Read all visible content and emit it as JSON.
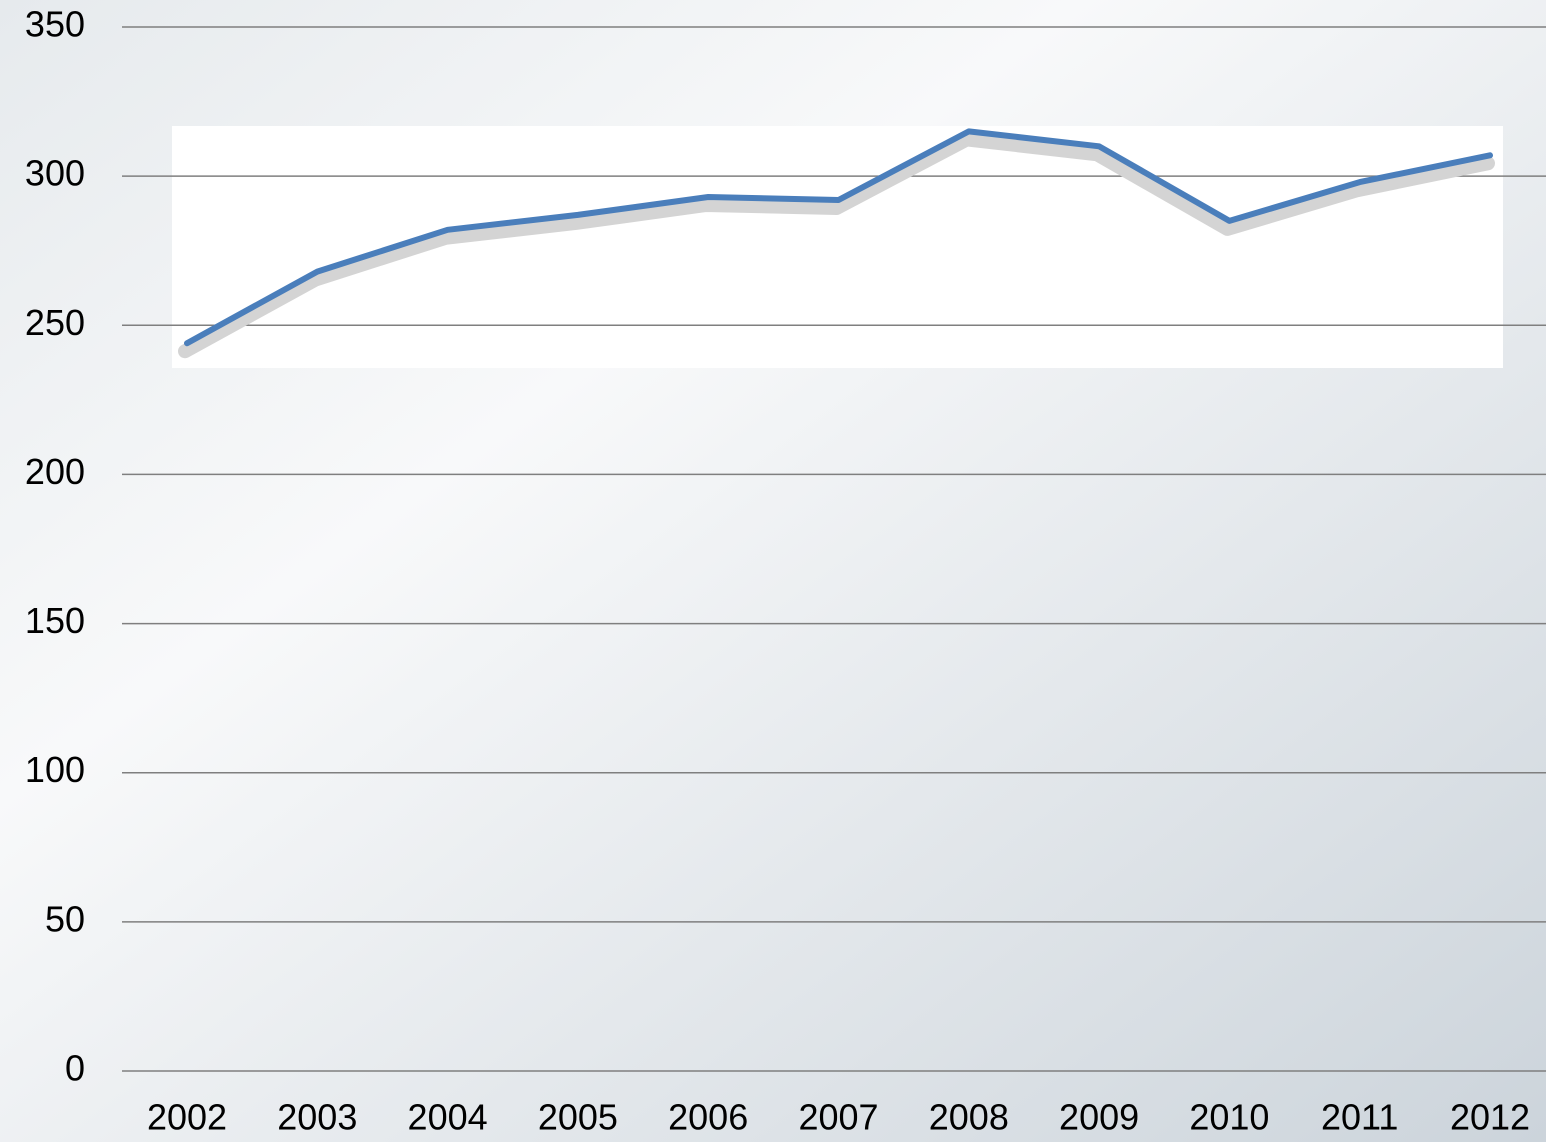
{
  "chart_data": {
    "type": "line",
    "categories": [
      "2002",
      "2003",
      "2004",
      "2005",
      "2006",
      "2007",
      "2008",
      "2009",
      "2010",
      "2011",
      "2012"
    ],
    "series": [
      {
        "color": "#4a7ebb",
        "values": [
          244,
          268,
          282,
          287,
          293,
          292,
          315,
          310,
          285,
          298,
          307
        ]
      }
    ],
    "ylim": [
      0,
      350
    ],
    "yticks": [
      0,
      50,
      100,
      150,
      200,
      250,
      300,
      350
    ],
    "grid": true
  }
}
